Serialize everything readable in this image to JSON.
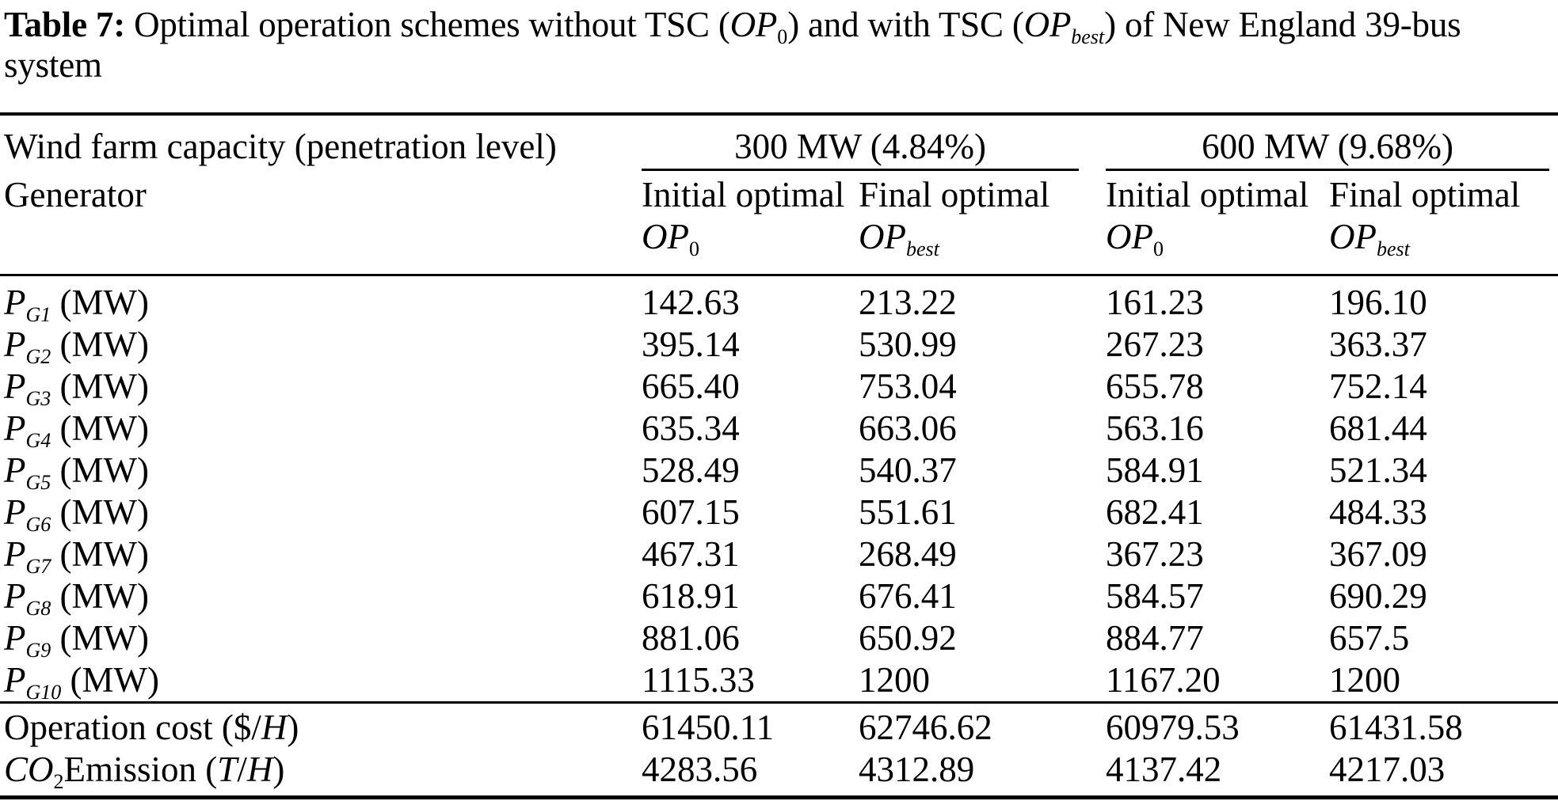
{
  "caption": {
    "label": "Table 7:",
    "t1": " Optimal operation schemes without TSC (",
    "op1": "OP",
    "op1_sub": "0",
    "t2": ") and with TSC (",
    "op2": "OP",
    "op2_sub": "best",
    "t3": ") of New England 39-bus system"
  },
  "table": {
    "col1_header_line1": "Wind farm capacity (penetration level)",
    "col1_header_line2": "Generator",
    "groups": [
      {
        "label": "300 MW (4.84%)"
      },
      {
        "label": "600 MW (9.68%)"
      }
    ],
    "subheaders": {
      "initial_text": "Initial optimal ",
      "initial_var": "OP",
      "initial_sub": "0",
      "final_text": "Final optimal ",
      "final_var": "OP",
      "final_sub": "best"
    },
    "generator_rows": [
      {
        "base": "P",
        "sub": "G1",
        "suffix": " (MW)",
        "values": [
          "142.63",
          "213.22",
          "161.23",
          "196.10"
        ]
      },
      {
        "base": "P",
        "sub": "G2",
        "suffix": " (MW)",
        "values": [
          "395.14",
          "530.99",
          "267.23",
          "363.37"
        ]
      },
      {
        "base": "P",
        "sub": "G3",
        "suffix": " (MW)",
        "values": [
          "665.40",
          "753.04",
          "655.78",
          "752.14"
        ]
      },
      {
        "base": "P",
        "sub": "G4",
        "suffix": " (MW)",
        "values": [
          "635.34",
          "663.06",
          "563.16",
          "681.44"
        ]
      },
      {
        "base": "P",
        "sub": "G5",
        "suffix": " (MW)",
        "values": [
          "528.49",
          "540.37",
          "584.91",
          "521.34"
        ]
      },
      {
        "base": "P",
        "sub": "G6",
        "suffix": " (MW)",
        "values": [
          "607.15",
          "551.61",
          "682.41",
          "484.33"
        ]
      },
      {
        "base": "P",
        "sub": "G7",
        "suffix": " (MW)",
        "values": [
          "467.31",
          "268.49",
          "367.23",
          "367.09"
        ]
      },
      {
        "base": "P",
        "sub": "G8",
        "suffix": " (MW)",
        "values": [
          "618.91",
          "676.41",
          "584.57",
          "690.29"
        ]
      },
      {
        "base": "P",
        "sub": "G9",
        "suffix": " (MW)",
        "values": [
          "881.06",
          "650.92",
          "884.77",
          "657.5"
        ]
      },
      {
        "base": "P",
        "sub": "G10",
        "suffix": " (MW)",
        "values": [
          "1115.33",
          "1200",
          "1167.20",
          "1200"
        ]
      }
    ],
    "summary_rows": [
      {
        "pre": "Operation cost ($/",
        "it": "H",
        "post": ")",
        "values": [
          "61450.11",
          "62746.62",
          "60979.53",
          "61431.58"
        ]
      },
      {
        "it1": "CO",
        "sub": "2",
        "mid": "Emission (",
        "it2": "T",
        "slash": "/",
        "it3": "H",
        "post": ")",
        "values": [
          "4283.56",
          "4312.89",
          "4137.42",
          "4217.03"
        ]
      }
    ]
  },
  "chart_data": {
    "type": "table",
    "title": "Table 7: Optimal operation schemes without TSC (OP0) and with TSC (OPbest) of New England 39-bus system",
    "column_groups": [
      "300 MW (4.84%)",
      "600 MW (9.68%)"
    ],
    "columns": [
      "Generator",
      "Initial optimal OP0 (300 MW)",
      "Final optimal OPbest (300 MW)",
      "Initial optimal OP0 (600 MW)",
      "Final optimal OPbest (600 MW)"
    ],
    "rows": [
      [
        "PG1 (MW)",
        142.63,
        213.22,
        161.23,
        196.1
      ],
      [
        "PG2 (MW)",
        395.14,
        530.99,
        267.23,
        363.37
      ],
      [
        "PG3 (MW)",
        665.4,
        753.04,
        655.78,
        752.14
      ],
      [
        "PG4 (MW)",
        635.34,
        663.06,
        563.16,
        681.44
      ],
      [
        "PG5 (MW)",
        528.49,
        540.37,
        584.91,
        521.34
      ],
      [
        "PG6 (MW)",
        607.15,
        551.61,
        682.41,
        484.33
      ],
      [
        "PG7 (MW)",
        467.31,
        268.49,
        367.23,
        367.09
      ],
      [
        "PG8 (MW)",
        618.91,
        676.41,
        584.57,
        690.29
      ],
      [
        "PG9 (MW)",
        881.06,
        650.92,
        884.77,
        657.5
      ],
      [
        "PG10 (MW)",
        1115.33,
        1200,
        1167.2,
        1200
      ],
      [
        "Operation cost ($/H)",
        61450.11,
        62746.62,
        60979.53,
        61431.58
      ],
      [
        "CO2 Emission (T/H)",
        4283.56,
        4312.89,
        4137.42,
        4217.03
      ]
    ]
  }
}
